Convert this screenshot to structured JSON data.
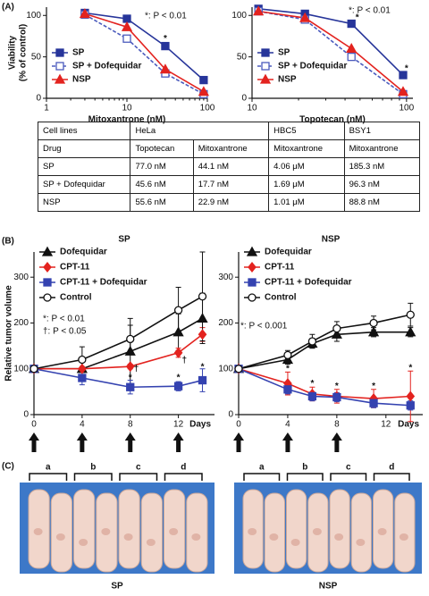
{
  "panel_labels": [
    "(A)",
    "(B)",
    "(C)"
  ],
  "chart_data": [
    {
      "type": "line",
      "x_label": "Mitoxantrone (nM)",
      "y_label": [
        "Viability",
        "(% of control)"
      ],
      "xscale": "log",
      "xlim": [
        1,
        100
      ],
      "xticks": [
        1,
        10,
        100
      ],
      "ylim": [
        0,
        110
      ],
      "yticks": [
        0,
        50,
        100
      ],
      "legend": "lower left",
      "x": [
        3,
        10,
        30,
        90
      ],
      "series": [
        {
          "name": "SP",
          "color": "#27359a",
          "marker": "square",
          "filled": true,
          "dashed": false,
          "values": [
            103,
            96,
            63,
            22
          ]
        },
        {
          "name": "SP + Dofequidar",
          "color": "#4b5bbd",
          "marker": "square",
          "filled": false,
          "dashed": true,
          "values": [
            101,
            72,
            30,
            5
          ]
        },
        {
          "name": "NSP",
          "color": "#e3231f",
          "marker": "triangle",
          "filled": true,
          "dashed": false,
          "values": [
            102,
            86,
            35,
            8
          ]
        }
      ],
      "notes": [
        "*: P < 0.01"
      ],
      "point_marks": [
        {
          "text": "*",
          "x": 30,
          "y": 72
        }
      ]
    },
    {
      "type": "line",
      "x_label": "Topotecan (nM)",
      "xscale": "log",
      "xlim": [
        10,
        110
      ],
      "xticks": [
        10,
        100
      ],
      "ylim": [
        0,
        110
      ],
      "yticks": [
        0,
        50,
        100
      ],
      "legend": "lower left",
      "x": [
        11,
        22,
        44,
        95
      ],
      "series": [
        {
          "name": "SP",
          "color": "#27359a",
          "marker": "square",
          "filled": true,
          "dashed": false,
          "values": [
            108,
            102,
            90,
            28
          ]
        },
        {
          "name": "SP + Dofequidar",
          "color": "#4b5bbd",
          "marker": "square",
          "filled": false,
          "dashed": true,
          "values": [
            105,
            95,
            50,
            5
          ]
        },
        {
          "name": "NSP",
          "color": "#e3231f",
          "marker": "triangle",
          "filled": true,
          "dashed": false,
          "values": [
            105,
            97,
            60,
            8
          ]
        }
      ],
      "notes": [
        "*: P < 0.01"
      ],
      "point_marks": [
        {
          "text": "*",
          "x": 48,
          "y": 97
        },
        {
          "text": "*",
          "x": 100,
          "y": 36
        }
      ]
    },
    {
      "type": "line",
      "title": "SP",
      "x_label": "Days",
      "y_label": [
        "Relative tumor volume"
      ],
      "xlim": [
        0,
        15
      ],
      "xticks": [
        0,
        4,
        8,
        12
      ],
      "ylim": [
        0,
        355
      ],
      "yticks": [
        0,
        100,
        200,
        300
      ],
      "legend": "upper left",
      "x": [
        0,
        4,
        8,
        12,
        14
      ],
      "treatment_days": [
        0,
        4,
        8,
        12
      ],
      "series": [
        {
          "name": "Dofequidar",
          "color": "#111111",
          "marker": "triangle",
          "filled": true,
          "dashed": false,
          "values": [
            100,
            100,
            138,
            180,
            210
          ],
          "errors": [
            0,
            0,
            72,
            40,
            55
          ]
        },
        {
          "name": "CPT-11",
          "color": "#e3231f",
          "marker": "diamond",
          "filled": true,
          "dashed": false,
          "values": [
            100,
            100,
            105,
            135,
            175
          ],
          "errors": [
            0,
            5,
            5,
            10,
            15
          ]
        },
        {
          "name": "CPT-11 + Dofequidar",
          "color": "#3442b0",
          "marker": "square",
          "filled": true,
          "dashed": false,
          "values": [
            100,
            80,
            60,
            62,
            75
          ],
          "errors": [
            0,
            15,
            15,
            10,
            25
          ]
        },
        {
          "name": "Control",
          "color": "#111111",
          "marker": "circle",
          "filled": false,
          "dashed": false,
          "values": [
            100,
            120,
            165,
            228,
            258
          ],
          "errors": [
            0,
            28,
            30,
            50,
            97
          ]
        }
      ],
      "notes": [
        "*: P < 0.01",
        "†: P < 0.05"
      ],
      "point_marks": [
        {
          "text": "*",
          "x": 8,
          "y": 80
        },
        {
          "text": "*",
          "x": 12,
          "y": 80
        },
        {
          "text": "*",
          "x": 14,
          "y": 104
        },
        {
          "text": "†",
          "x": 8.5,
          "y": 100
        },
        {
          "text": "†",
          "x": 12.5,
          "y": 118
        }
      ]
    },
    {
      "type": "line",
      "title": "NSP",
      "x_label": "Days",
      "xlim": [
        0,
        15
      ],
      "xticks": [
        0,
        4,
        8,
        12
      ],
      "ylim": [
        0,
        355
      ],
      "yticks": [
        0,
        100,
        200,
        300
      ],
      "legend": "upper left",
      "x": [
        0,
        4,
        6,
        8,
        11,
        14
      ],
      "treatment_days": [
        0,
        4,
        8
      ],
      "series": [
        {
          "name": "Dofequidar",
          "color": "#111111",
          "marker": "triangle",
          "filled": true,
          "dashed": false,
          "values": [
            100,
            120,
            155,
            175,
            180,
            180
          ],
          "errors": [
            0,
            10,
            10,
            15,
            10,
            10
          ]
        },
        {
          "name": "CPT-11",
          "color": "#e3231f",
          "marker": "diamond",
          "filled": true,
          "dashed": false,
          "values": [
            100,
            68,
            45,
            40,
            35,
            40
          ],
          "errors": [
            0,
            25,
            15,
            15,
            20,
            55
          ]
        },
        {
          "name": "CPT-11 + Dofequidar",
          "color": "#3442b0",
          "marker": "square",
          "filled": true,
          "dashed": false,
          "values": [
            100,
            55,
            40,
            38,
            25,
            20
          ],
          "errors": [
            0,
            10,
            10,
            10,
            10,
            10
          ]
        },
        {
          "name": "Control",
          "color": "#111111",
          "marker": "circle",
          "filled": false,
          "dashed": false,
          "values": [
            100,
            130,
            160,
            188,
            200,
            218
          ],
          "errors": [
            0,
            10,
            15,
            15,
            15,
            25
          ]
        }
      ],
      "notes": [
        "*: P < 0.001"
      ],
      "point_marks": [
        {
          "text": "*",
          "x": 4,
          "y": 100
        },
        {
          "text": "*",
          "x": 6,
          "y": 68
        },
        {
          "text": "*",
          "x": 8,
          "y": 62
        },
        {
          "text": "*",
          "x": 11,
          "y": 62
        },
        {
          "text": "*",
          "x": 14,
          "y": 102
        }
      ]
    }
  ],
  "table": {
    "header": [
      "Cell lines",
      "HeLa",
      "HBC5",
      "BSY1"
    ],
    "subheader": [
      "Drug",
      "Topotecan",
      "Mitoxantrone",
      "Mitoxantrone",
      "Mitoxantrone"
    ],
    "rows": [
      [
        "SP",
        "77.0 nM",
        "44.1 nM",
        "4.06 μM",
        "185.3 nM"
      ],
      [
        "SP + Dofequidar",
        "45.6 nM",
        "17.7 nM",
        "1.69 μM",
        "96.3 nM"
      ],
      [
        "NSP",
        "55.6 nM",
        "22.9 nM",
        "1.01 μM",
        "88.8 nM"
      ]
    ]
  },
  "photos": [
    {
      "groups": [
        "a",
        "b",
        "c",
        "d"
      ],
      "caption": "SP"
    },
    {
      "groups": [
        "a",
        "b",
        "c",
        "d"
      ],
      "caption": "NSP"
    }
  ]
}
